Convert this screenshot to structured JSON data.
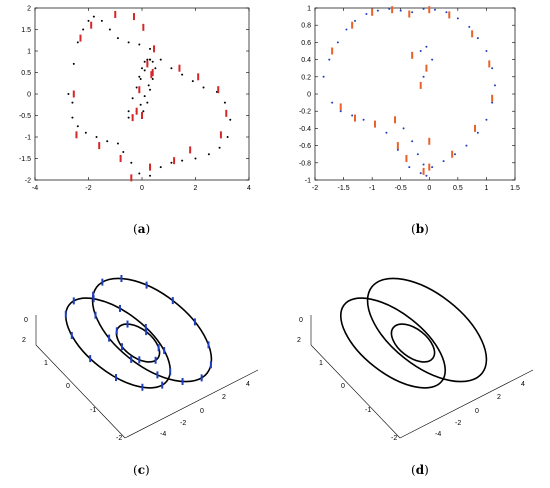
{
  "captions": [
    "a",
    "b",
    "c",
    "d"
  ],
  "chart_data": [
    {
      "panel": "a",
      "type": "scatter",
      "xlim": [
        -4,
        4
      ],
      "ylim": [
        -2,
        2
      ],
      "xticks": [
        -4,
        -2,
        0,
        2,
        4
      ],
      "yticks": [
        -2,
        -1.5,
        -1,
        -0.5,
        0,
        0.5,
        1,
        1.5,
        2
      ],
      "xtick_labels": [
        "-4",
        "-2",
        "0",
        "2",
        "4"
      ],
      "ytick_labels": [
        "-2",
        "-1.5",
        "-1",
        "-0.5",
        "0",
        "0.5",
        "1",
        "1.5",
        "2"
      ],
      "grid": false,
      "series": [
        {
          "color": "#000000",
          "marker": "dot",
          "x": [
            -2.6,
            -2.55,
            -2.4,
            -2.2,
            -2.0,
            -1.8,
            -1.5,
            -1.2,
            -0.9,
            -0.5,
            -0.1,
            0.3,
            0.7,
            1.1,
            1.5,
            1.9,
            2.3,
            2.8,
            3.1,
            3.3,
            3.2,
            2.9,
            2.5,
            2.0,
            1.5,
            1.1,
            0.7,
            0.3,
            -0.1,
            -0.4,
            -0.7,
            -0.9,
            -1.3,
            -1.7,
            -2.1,
            -2.4,
            -2.6,
            -2.75,
            -0.5,
            -0.35,
            -0.2,
            -0.05,
            0.1,
            0.2,
            0.3,
            0.35,
            0.25,
            0.1,
            -0.05,
            -0.2,
            -0.35,
            -0.5,
            0.05,
            0.2,
            0.3,
            0.4,
            0.5,
            0.4,
            0.3,
            0.2,
            0.1,
            0.0,
            -0.1
          ],
          "y": [
            -0.2,
            0.7,
            1.2,
            1.5,
            1.7,
            1.8,
            1.7,
            1.5,
            1.3,
            1.2,
            1.15,
            1.05,
            0.8,
            0.6,
            0.45,
            0.3,
            0.15,
            0.05,
            -0.2,
            -0.6,
            -1.0,
            -1.25,
            -1.4,
            -1.5,
            -1.55,
            -1.6,
            -1.7,
            -1.9,
            -1.85,
            -1.6,
            -1.35,
            -1.15,
            -1.1,
            -1.0,
            -0.9,
            -0.75,
            -0.55,
            0.0,
            -0.4,
            -0.1,
            0.15,
            0.35,
            0.55,
            0.7,
            0.8,
            0.5,
            0.2,
            -0.05,
            -0.25,
            -0.4,
            -0.5,
            -0.55,
            -0.4,
            -0.2,
            0.1,
            0.35,
            0.6,
            0.75,
            0.8,
            0.8,
            0.75,
            0.6,
            0.4
          ]
        },
        {
          "color": "#d62728",
          "marker": "bar",
          "x": [
            -2.3,
            -1.9,
            -1.0,
            -0.3,
            0.05,
            0.45,
            1.4,
            2.1,
            2.85,
            3.15,
            2.95,
            1.8,
            1.2,
            0.3,
            -0.4,
            -0.8,
            -1.6,
            -2.45,
            -2.55,
            -0.2,
            0.2,
            0.35,
            -0.35,
            -0.1,
            0.4,
            0.0
          ],
          "y": [
            1.3,
            1.6,
            1.85,
            1.8,
            1.55,
            1.05,
            0.6,
            0.4,
            0.1,
            -0.45,
            -0.95,
            -1.3,
            -1.55,
            -1.7,
            -1.95,
            -1.5,
            -1.2,
            -0.95,
            0.0,
            -0.4,
            0.7,
            0.45,
            -0.55,
            0.1,
            0.5,
            -0.5
          ]
        }
      ]
    },
    {
      "panel": "b",
      "type": "scatter",
      "xlim": [
        -2,
        1.5
      ],
      "ylim": [
        -1,
        1
      ],
      "xticks": [
        -2,
        -1.5,
        -1,
        -0.5,
        0,
        0.5,
        1,
        1.5
      ],
      "yticks": [
        -1,
        -0.8,
        -0.6,
        -0.4,
        -0.2,
        0,
        0.2,
        0.4,
        0.6,
        0.8,
        1
      ],
      "xtick_labels": [
        "-2",
        "-1.5",
        "-1",
        "-0.5",
        "0",
        "0.5",
        "1",
        "1.5"
      ],
      "ytick_labels": [
        "-1",
        "-0.8",
        "-0.6",
        "-0.4",
        "-0.2",
        "0",
        "0.2",
        "0.4",
        "0.6",
        "0.8",
        "1"
      ],
      "grid": false,
      "series": [
        {
          "color": "#1f3fbf",
          "marker": "dot",
          "x": [
            -1.85,
            -1.75,
            -1.6,
            -1.45,
            -1.3,
            -1.1,
            -0.9,
            -0.7,
            -0.5,
            -0.3,
            -0.1,
            0.1,
            0.3,
            0.5,
            0.7,
            0.85,
            1.0,
            1.1,
            1.15,
            1.1,
            1.0,
            0.85,
            0.65,
            0.45,
            0.25,
            0.05,
            -0.15,
            -0.35,
            -0.55,
            -0.75,
            -0.95,
            -1.15,
            -1.35,
            -1.55,
            -1.7,
            -0.45,
            -0.3,
            -0.2,
            -0.1,
            -0.05,
            -0.1,
            -0.15,
            -0.05,
            0.05
          ],
          "y": [
            0.2,
            0.4,
            0.6,
            0.75,
            0.85,
            0.93,
            0.97,
            0.99,
            0.97,
            0.95,
            0.99,
            0.98,
            0.95,
            0.88,
            0.78,
            0.65,
            0.5,
            0.3,
            0.1,
            -0.1,
            -0.3,
            -0.45,
            -0.6,
            -0.7,
            -0.78,
            -0.85,
            -0.92,
            -0.85,
            -0.65,
            -0.45,
            -0.35,
            -0.3,
            -0.25,
            -0.2,
            -0.1,
            -0.4,
            -0.55,
            -0.7,
            -0.82,
            -0.95,
            0.2,
            0.5,
            0.55,
            0.4
          ]
        },
        {
          "color": "#e8622a",
          "marker": "bar",
          "x": [
            -1.7,
            -1.35,
            -1.0,
            -0.65,
            -0.35,
            0.0,
            0.35,
            0.75,
            1.05,
            1.1,
            0.8,
            0.4,
            0.0,
            -0.55,
            -0.95,
            -1.3,
            -1.55,
            -0.3,
            -0.15,
            -0.05,
            0.0,
            -0.4,
            -0.1,
            -0.6
          ],
          "y": [
            0.5,
            0.8,
            0.95,
            0.98,
            0.93,
            0.98,
            0.92,
            0.7,
            0.35,
            -0.05,
            -0.4,
            -0.7,
            -0.85,
            -0.6,
            -0.35,
            -0.28,
            -0.15,
            0.45,
            0.1,
            0.3,
            -0.55,
            -0.75,
            -0.9,
            -0.3
          ]
        }
      ]
    },
    {
      "panel": "c",
      "type": "line",
      "projection": "3d",
      "xtick_labels": [
        "-4",
        "-2",
        "0",
        "2",
        "4"
      ],
      "ytick_labels": [
        "-2",
        "-1",
        "0",
        "1",
        "2"
      ],
      "ztick_labels": [
        "0"
      ],
      "curves": 3,
      "color": "#000000",
      "markers": {
        "color": "#1f3fbf",
        "marker": "bar"
      }
    },
    {
      "panel": "d",
      "type": "line",
      "projection": "3d",
      "xtick_labels": [
        "-4",
        "-2",
        "0",
        "2",
        "4"
      ],
      "ytick_labels": [
        "-2",
        "-1",
        "0",
        "1",
        "2"
      ],
      "ztick_labels": [
        "0"
      ],
      "curves": 3,
      "color": "#000000"
    }
  ]
}
